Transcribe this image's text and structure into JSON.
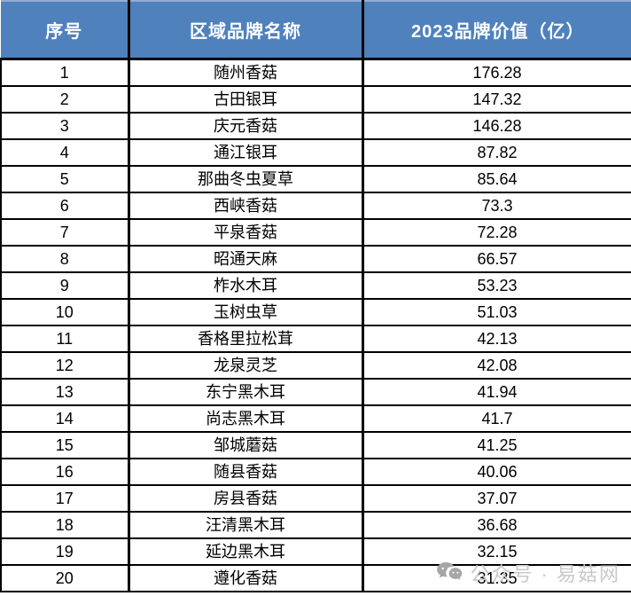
{
  "table": {
    "headers": {
      "rank": "序号",
      "name": "区域品牌名称",
      "value": "2023品牌价值（亿）"
    },
    "rows": [
      {
        "rank": "1",
        "name": "随州香菇",
        "value": "176.28"
      },
      {
        "rank": "2",
        "name": "古田银耳",
        "value": "147.32"
      },
      {
        "rank": "3",
        "name": "庆元香菇",
        "value": "146.28"
      },
      {
        "rank": "4",
        "name": "通江银耳",
        "value": "87.82"
      },
      {
        "rank": "5",
        "name": "那曲冬虫夏草",
        "value": "85.64"
      },
      {
        "rank": "6",
        "name": "西峡香菇",
        "value": "73.3"
      },
      {
        "rank": "7",
        "name": "平泉香菇",
        "value": "72.28"
      },
      {
        "rank": "8",
        "name": "昭通天麻",
        "value": "66.57"
      },
      {
        "rank": "9",
        "name": "柞水木耳",
        "value": "53.23"
      },
      {
        "rank": "10",
        "name": "玉树虫草",
        "value": "51.03"
      },
      {
        "rank": "11",
        "name": "香格里拉松茸",
        "value": "42.13"
      },
      {
        "rank": "12",
        "name": "龙泉灵芝",
        "value": "42.08"
      },
      {
        "rank": "13",
        "name": "东宁黑木耳",
        "value": "41.94"
      },
      {
        "rank": "14",
        "name": "尚志黑木耳",
        "value": "41.7"
      },
      {
        "rank": "15",
        "name": "邹城蘑菇",
        "value": "41.25"
      },
      {
        "rank": "16",
        "name": "随县香菇",
        "value": "40.06"
      },
      {
        "rank": "17",
        "name": "房县香菇",
        "value": "37.07"
      },
      {
        "rank": "18",
        "name": "汪清黑木耳",
        "value": "36.68"
      },
      {
        "rank": "19",
        "name": "延边黑木耳",
        "value": "32.15"
      },
      {
        "rank": "20",
        "name": "遵化香菇",
        "value": "31.35"
      }
    ]
  },
  "watermark": {
    "icon": "chat-bubbles-icon",
    "text": "公众号 · 易菇网"
  },
  "colors": {
    "header_bg": "#4F81BD",
    "header_text": "#FFFFFF",
    "border": "#000000",
    "watermark_text": "#C8C8C8",
    "watermark_icon": "#A6A6A6"
  }
}
